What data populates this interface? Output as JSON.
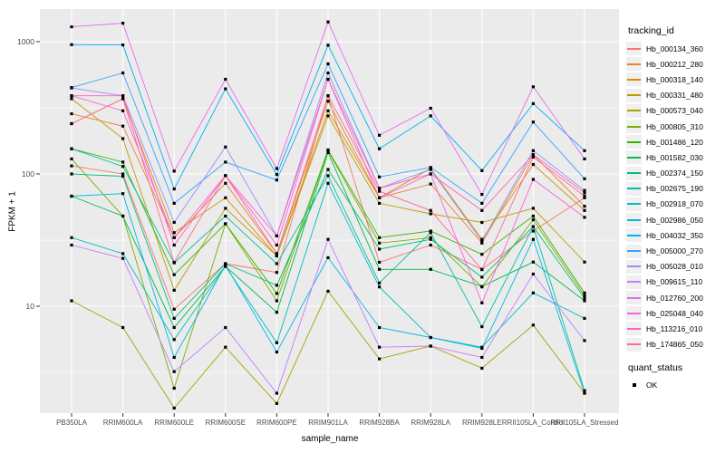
{
  "figure": {
    "panel_bg": "#EBEBEB",
    "grid_color": "#FFFFFF",
    "point_color": "#000000",
    "tick_label_color": "#4D4D4D",
    "axis_title_color": "#000000",
    "background": "#FFFFFF"
  },
  "chart_data": {
    "type": "line",
    "title": "",
    "xlabel": "sample_name",
    "ylabel": "FPKM + 1",
    "y_scale": "log10",
    "y_ticks": [
      10,
      100,
      1000
    ],
    "y_minor_ticks": [
      3.16,
      31.6,
      316
    ],
    "ylim": [
      1.5,
      1780
    ],
    "grid": true,
    "legend_position": "right",
    "point_shape": "filled-square-black",
    "categories": [
      "PB350LA",
      "RRIM600LA",
      "RRIM600LE",
      "RRIM600SE",
      "RRIM600PE",
      "RRIM901LA",
      "RRIM928BA",
      "RRIM928LA",
      "RRIM928LE",
      "RRII105LA_Control",
      "RRII105LA_Stressed"
    ],
    "series": [
      {
        "name": "Hb_000134_360",
        "color": "#F8766D",
        "values": [
          115,
          100,
          9.5,
          21,
          18,
          390,
          21.5,
          29,
          19,
          37,
          66
        ]
      },
      {
        "name": "Hb_000212_280",
        "color": "#EA8331",
        "values": [
          285,
          230,
          33,
          85,
          25,
          355,
          66,
          84,
          30,
          140,
          57
        ]
      },
      {
        "name": "Hb_000318_140",
        "color": "#D89000",
        "values": [
          240,
          370,
          36,
          66,
          24,
          300,
          66,
          110,
          32,
          118,
          53
        ]
      },
      {
        "name": "Hb_000331_480",
        "color": "#C09B00",
        "values": [
          370,
          185,
          13.2,
          55,
          24,
          275,
          60,
          50,
          43,
          55,
          21.6
        ]
      },
      {
        "name": "Hb_000573_040",
        "color": "#A3A500",
        "values": [
          11,
          6.9,
          1.7,
          4.9,
          1.84,
          13,
          4.0,
          5.0,
          3.4,
          7.2,
          2.2
        ]
      },
      {
        "name": "Hb_000805_310",
        "color": "#7CAE00",
        "values": [
          130,
          48,
          2.4,
          42,
          11,
          150,
          30,
          33,
          14,
          45,
          12
        ]
      },
      {
        "name": "Hb_001486_120",
        "color": "#39B600",
        "values": [
          155,
          123,
          17.3,
          42,
          12.5,
          152,
          33,
          37,
          24.7,
          48,
          12.6
        ]
      },
      {
        "name": "Hb_001582_030",
        "color": "#00BB4E",
        "values": [
          68,
          48,
          6.9,
          20,
          9,
          145,
          19,
          19,
          14.1,
          21.6,
          11
        ]
      },
      {
        "name": "Hb_002374_150",
        "color": "#00BF7D",
        "values": [
          100,
          96,
          8.1,
          21,
          14.4,
          108,
          27,
          32,
          16.6,
          40,
          11.5
        ]
      },
      {
        "name": "Hb_002675_190",
        "color": "#00C1A3",
        "values": [
          155,
          114,
          21.3,
          48,
          21,
          97,
          15,
          36,
          7,
          40,
          2.3
        ]
      },
      {
        "name": "Hb_002918_070",
        "color": "#00BFC4",
        "values": [
          33,
          25,
          5.6,
          20,
          5.3,
          85,
          14,
          5.8,
          4.9,
          12.6,
          8.1
        ]
      },
      {
        "name": "Hb_002986_050",
        "color": "#00BAE0",
        "values": [
          68,
          71,
          4.1,
          20.5,
          4.5,
          23.3,
          6.9,
          5.8,
          4.8,
          32,
          2.2
        ]
      },
      {
        "name": "Hb_004032_350",
        "color": "#00B0F6",
        "values": [
          950,
          945,
          77,
          440,
          99,
          940,
          155,
          275,
          106,
          340,
          150
        ]
      },
      {
        "name": "Hb_005000_270",
        "color": "#35A2FF",
        "values": [
          450,
          580,
          60,
          123,
          90,
          680,
          95,
          112,
          60,
          247,
          92
        ]
      },
      {
        "name": "Hb_005028_010",
        "color": "#9590FF",
        "values": [
          447,
          390,
          43,
          160,
          34,
          580,
          78,
          108,
          31,
          150,
          75
        ]
      },
      {
        "name": "Hb_009615_110",
        "color": "#C77CFF",
        "values": [
          29,
          23,
          3.2,
          6.9,
          2.2,
          32,
          4.9,
          5.0,
          4.1,
          17.5,
          5.5
        ]
      },
      {
        "name": "Hb_012760_200",
        "color": "#E76BF3",
        "values": [
          1295,
          1380,
          105,
          520,
          110,
          1410,
          196,
          314,
          70,
          456,
          130
        ]
      },
      {
        "name": "Hb_025048_040",
        "color": "#FA62DB",
        "values": [
          390,
          300,
          33,
          97,
          29,
          520,
          66,
          100,
          10.6,
          91,
          47
        ]
      },
      {
        "name": "Hb_113216_010",
        "color": "#FF62BC",
        "values": [
          390,
          390,
          29,
          97,
          34,
          520,
          78,
          100,
          53,
          140,
          72
        ]
      },
      {
        "name": "Hb_174865_050",
        "color": "#FF6A98",
        "values": [
          240,
          370,
          21.5,
          97,
          25,
          390,
          74,
          53,
          18.9,
          134,
          68
        ]
      }
    ],
    "legend": {
      "tracking_title": "tracking_id",
      "quant_title": "quant_status",
      "quant_value": "OK"
    }
  }
}
